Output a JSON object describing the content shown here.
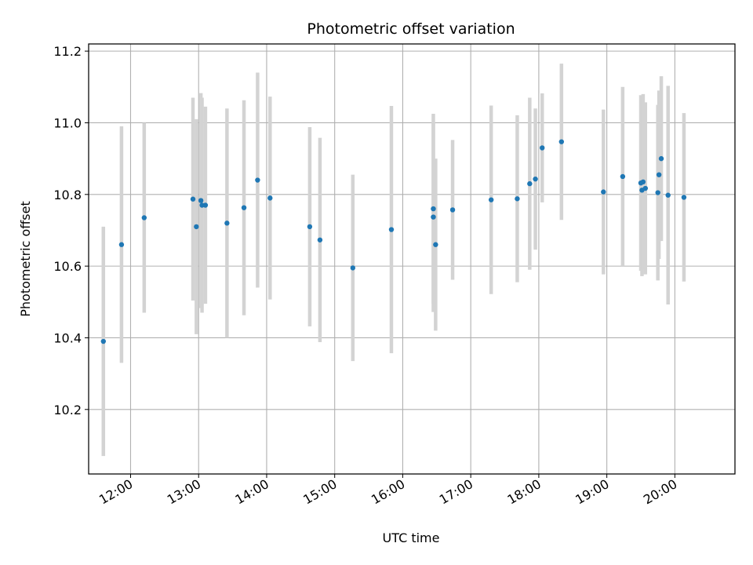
{
  "chart_data": {
    "type": "scatter",
    "title": "Photometric offset variation",
    "xlabel": "UTC time",
    "ylabel": "Photometric offset",
    "x_ticks": [
      "12:00",
      "13:00",
      "14:00",
      "15:00",
      "16:00",
      "17:00",
      "18:00",
      "19:00",
      "20:00"
    ],
    "y_ticks": [
      "10.2",
      "10.4",
      "10.6",
      "10.8",
      "11.0",
      "11.2"
    ],
    "xlim": [
      "11:23",
      "20:53"
    ],
    "ylim": [
      10.02,
      11.22
    ],
    "grid": true,
    "colors": {
      "marker": "#1f77b4",
      "errorbar": "#d3d3d3",
      "grid": "#b0b0b0"
    },
    "series": [
      {
        "points": [
          {
            "x": "11:36",
            "y": 10.39,
            "err": 0.32
          },
          {
            "x": "11:52",
            "y": 10.66,
            "err": 0.33
          },
          {
            "x": "12:12",
            "y": 10.735,
            "err": 0.265
          },
          {
            "x": "12:55",
            "y": 10.787,
            "err": 0.283
          },
          {
            "x": "12:58",
            "y": 10.71,
            "err": 0.3
          },
          {
            "x": "13:02",
            "y": 10.783,
            "err": 0.3
          },
          {
            "x": "13:03",
            "y": 10.77,
            "err": 0.3
          },
          {
            "x": "13:06",
            "y": 10.77,
            "err": 0.275
          },
          {
            "x": "13:25",
            "y": 10.72,
            "err": 0.32
          },
          {
            "x": "13:40",
            "y": 10.763,
            "err": 0.3
          },
          {
            "x": "13:52",
            "y": 10.84,
            "err": 0.3
          },
          {
            "x": "14:03",
            "y": 10.79,
            "err": 0.283
          },
          {
            "x": "14:38",
            "y": 10.71,
            "err": 0.278
          },
          {
            "x": "14:47",
            "y": 10.673,
            "err": 0.285
          },
          {
            "x": "15:16",
            "y": 10.595,
            "err": 0.26
          },
          {
            "x": "15:50",
            "y": 10.702,
            "err": 0.345
          },
          {
            "x": "16:27",
            "y": 10.76,
            "err": 0.265
          },
          {
            "x": "16:27",
            "y": 10.737,
            "err": 0.265
          },
          {
            "x": "16:29",
            "y": 10.66,
            "err": 0.24
          },
          {
            "x": "16:44",
            "y": 10.757,
            "err": 0.195
          },
          {
            "x": "17:18",
            "y": 10.785,
            "err": 0.263
          },
          {
            "x": "17:41",
            "y": 10.788,
            "err": 0.233
          },
          {
            "x": "17:52",
            "y": 10.83,
            "err": 0.24
          },
          {
            "x": "17:57",
            "y": 10.843,
            "err": 0.197
          },
          {
            "x": "18:03",
            "y": 10.93,
            "err": 0.152
          },
          {
            "x": "18:20",
            "y": 10.947,
            "err": 0.218
          },
          {
            "x": "18:57",
            "y": 10.807,
            "err": 0.23
          },
          {
            "x": "19:14",
            "y": 10.85,
            "err": 0.25
          },
          {
            "x": "19:30",
            "y": 10.832,
            "err": 0.245
          },
          {
            "x": "19:31",
            "y": 10.812,
            "err": 0.24
          },
          {
            "x": "19:32",
            "y": 10.835,
            "err": 0.245
          },
          {
            "x": "19:34",
            "y": 10.817,
            "err": 0.24
          },
          {
            "x": "19:45",
            "y": 10.805,
            "err": 0.245
          },
          {
            "x": "19:46",
            "y": 10.855,
            "err": 0.235
          },
          {
            "x": "19:48",
            "y": 10.9,
            "err": 0.23
          },
          {
            "x": "19:54",
            "y": 10.798,
            "err": 0.305
          },
          {
            "x": "20:08",
            "y": 10.792,
            "err": 0.235
          }
        ]
      }
    ]
  }
}
